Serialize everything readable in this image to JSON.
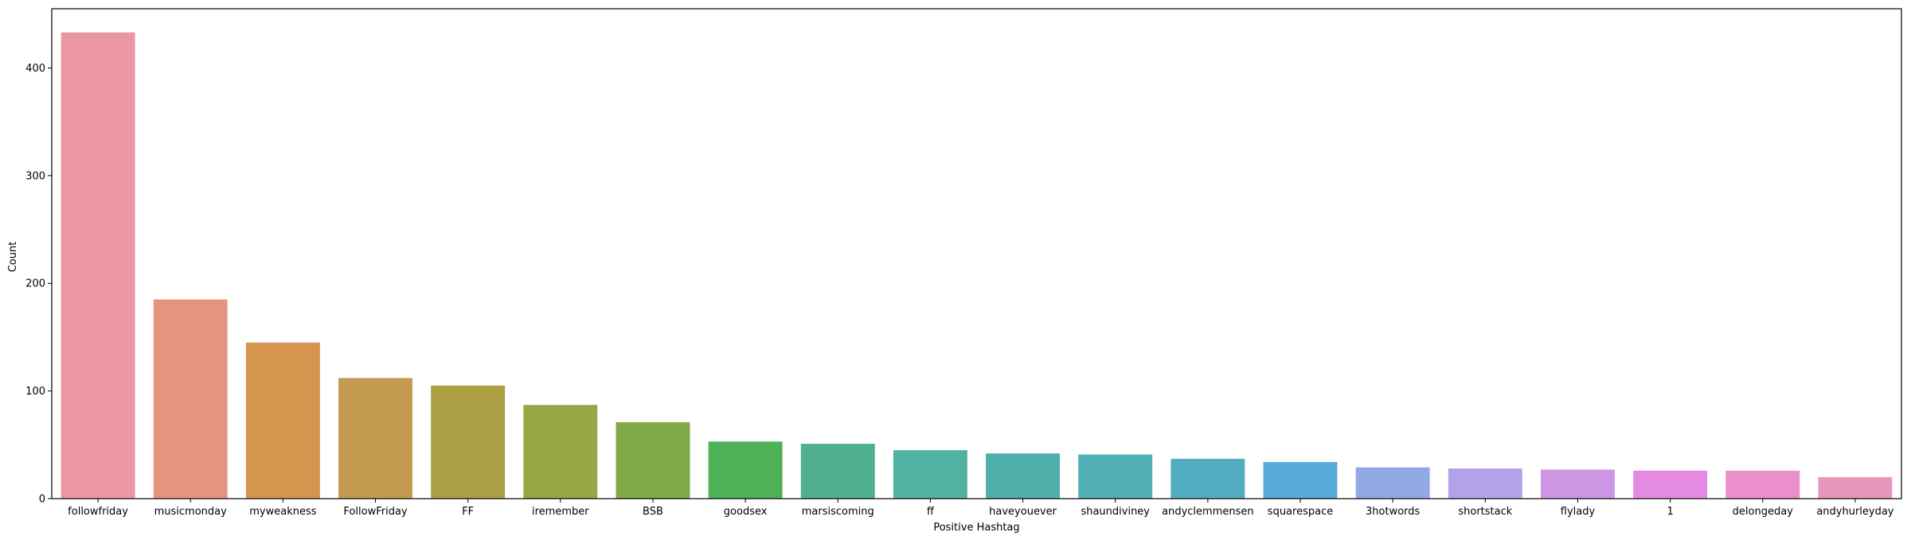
{
  "chart_data": {
    "type": "bar",
    "xlabel": "Positive Hashtag",
    "ylabel": "Count",
    "ylim": [
      0,
      455
    ],
    "yticks": [
      0,
      100,
      200,
      300,
      400
    ],
    "grid": false,
    "categories": [
      "followfriday",
      "musicmonday",
      "myweakness",
      "FollowFriday",
      "FF",
      "iremember",
      "BSB",
      "goodsex",
      "marsiscoming",
      "ff",
      "haveyouever",
      "shaundiviney",
      "andyclemmensen",
      "squarespace",
      "3hotwords",
      "shortstack",
      "flylady",
      "1",
      "delongeday",
      "andyhurleyday"
    ],
    "values": [
      433,
      185,
      145,
      112,
      105,
      87,
      71,
      53,
      51,
      45,
      42,
      41,
      37,
      34,
      29,
      28,
      27,
      26,
      26,
      20
    ],
    "colors": [
      "#ea96a3",
      "#e59480",
      "#d5954f",
      "#c39a4e",
      "#ad9f44",
      "#99a644",
      "#81aa47",
      "#4eb156",
      "#51b08f",
      "#50b2a0",
      "#4fb0ab",
      "#50aeb5",
      "#53adc0",
      "#58a9d8",
      "#92a9e6",
      "#b4a2e9",
      "#cd96e5",
      "#e48ae3",
      "#ea8fcb",
      "#e797bd"
    ]
  }
}
